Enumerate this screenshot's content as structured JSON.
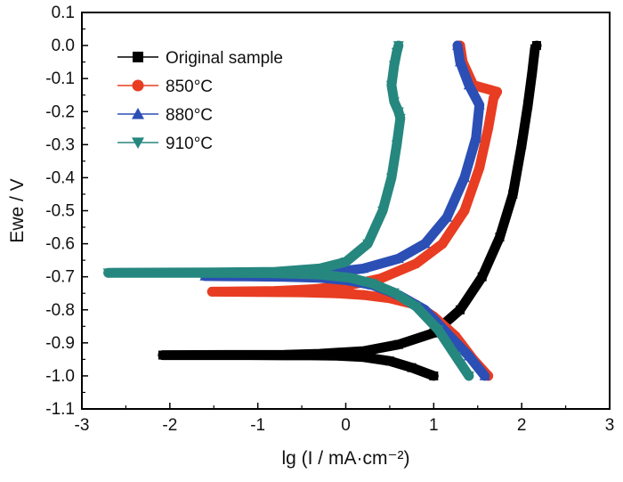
{
  "chart_data": {
    "type": "line",
    "title": "",
    "xlabel": "lg (I / mA·cm⁻²)",
    "ylabel": "Ewe / V",
    "xlim": [
      -3,
      3
    ],
    "ylim": [
      -1.1,
      0.1
    ],
    "xticks": [
      "-3",
      "-2",
      "-1",
      "0",
      "1",
      "2",
      "3"
    ],
    "yticks": [
      "0.1",
      "0.0",
      "-0.1",
      "-0.2",
      "-0.3",
      "-0.4",
      "-0.5",
      "-0.6",
      "-0.7",
      "-0.8",
      "-0.9",
      "-1.0",
      "-1.1"
    ],
    "grid": false,
    "legend_position": "top-left",
    "series": [
      {
        "name": "Original sample",
        "color": "#000000",
        "marker": "square",
        "x": [
          1.0,
          0.75,
          0.5,
          0.2,
          -0.1,
          -0.4,
          -0.7,
          -1.1,
          -2.08,
          -0.7,
          -0.3,
          0.2,
          0.6,
          1.0,
          1.3,
          1.55,
          1.75,
          1.9,
          2.0,
          2.07,
          2.12,
          2.15,
          2.17
        ],
        "y": [
          -1.0,
          -0.975,
          -0.955,
          -0.943,
          -0.939,
          -0.938,
          -0.938,
          -0.937,
          -0.937,
          -0.936,
          -0.933,
          -0.925,
          -0.905,
          -0.87,
          -0.8,
          -0.7,
          -0.58,
          -0.45,
          -0.3,
          -0.18,
          -0.08,
          -0.01,
          0.0
        ]
      },
      {
        "name": "850°C",
        "color": "#e83d22",
        "marker": "circle",
        "x": [
          1.62,
          1.45,
          1.25,
          1.0,
          0.8,
          0.5,
          0.2,
          -0.1,
          -0.5,
          -1.0,
          -1.52,
          -0.8,
          -0.4,
          0.0,
          0.4,
          0.8,
          1.1,
          1.35,
          1.52,
          1.62,
          1.68,
          1.72,
          1.65,
          1.45,
          1.33,
          1.3
        ],
        "y": [
          -1.0,
          -0.95,
          -0.88,
          -0.82,
          -0.785,
          -0.765,
          -0.755,
          -0.75,
          -0.747,
          -0.746,
          -0.745,
          -0.743,
          -0.738,
          -0.728,
          -0.705,
          -0.66,
          -0.6,
          -0.5,
          -0.37,
          -0.25,
          -0.16,
          -0.14,
          -0.135,
          -0.12,
          -0.05,
          0.0
        ]
      },
      {
        "name": "880°C",
        "color": "#2b4fb5",
        "marker": "triangle-up",
        "x": [
          1.58,
          1.4,
          1.15,
          0.9,
          0.6,
          0.3,
          0.0,
          -0.3,
          -0.7,
          -1.1,
          -1.6,
          -1.0,
          -0.6,
          -0.2,
          0.2,
          0.6,
          0.9,
          1.15,
          1.35,
          1.48,
          1.52,
          1.4,
          1.3,
          1.27
        ],
        "y": [
          -1.0,
          -0.94,
          -0.87,
          -0.8,
          -0.755,
          -0.725,
          -0.71,
          -0.703,
          -0.7,
          -0.699,
          -0.698,
          -0.697,
          -0.694,
          -0.688,
          -0.675,
          -0.645,
          -0.6,
          -0.52,
          -0.4,
          -0.28,
          -0.18,
          -0.12,
          -0.05,
          0.0
        ]
      },
      {
        "name": "910°C",
        "color": "#26877f",
        "marker": "triangle-down",
        "x": [
          1.4,
          1.25,
          1.05,
          0.8,
          0.55,
          0.3,
          0.05,
          -0.3,
          -0.8,
          -1.5,
          -2.7,
          -1.5,
          -0.8,
          -0.3,
          0.0,
          0.25,
          0.42,
          0.52,
          0.58,
          0.62,
          0.6,
          0.55,
          0.52,
          0.55,
          0.58,
          0.6
        ],
        "y": [
          -1.0,
          -0.94,
          -0.86,
          -0.79,
          -0.748,
          -0.72,
          -0.703,
          -0.693,
          -0.689,
          -0.688,
          -0.688,
          -0.687,
          -0.685,
          -0.675,
          -0.655,
          -0.6,
          -0.5,
          -0.4,
          -0.3,
          -0.22,
          -0.2,
          -0.17,
          -0.12,
          -0.06,
          -0.02,
          0.0
        ]
      }
    ]
  }
}
